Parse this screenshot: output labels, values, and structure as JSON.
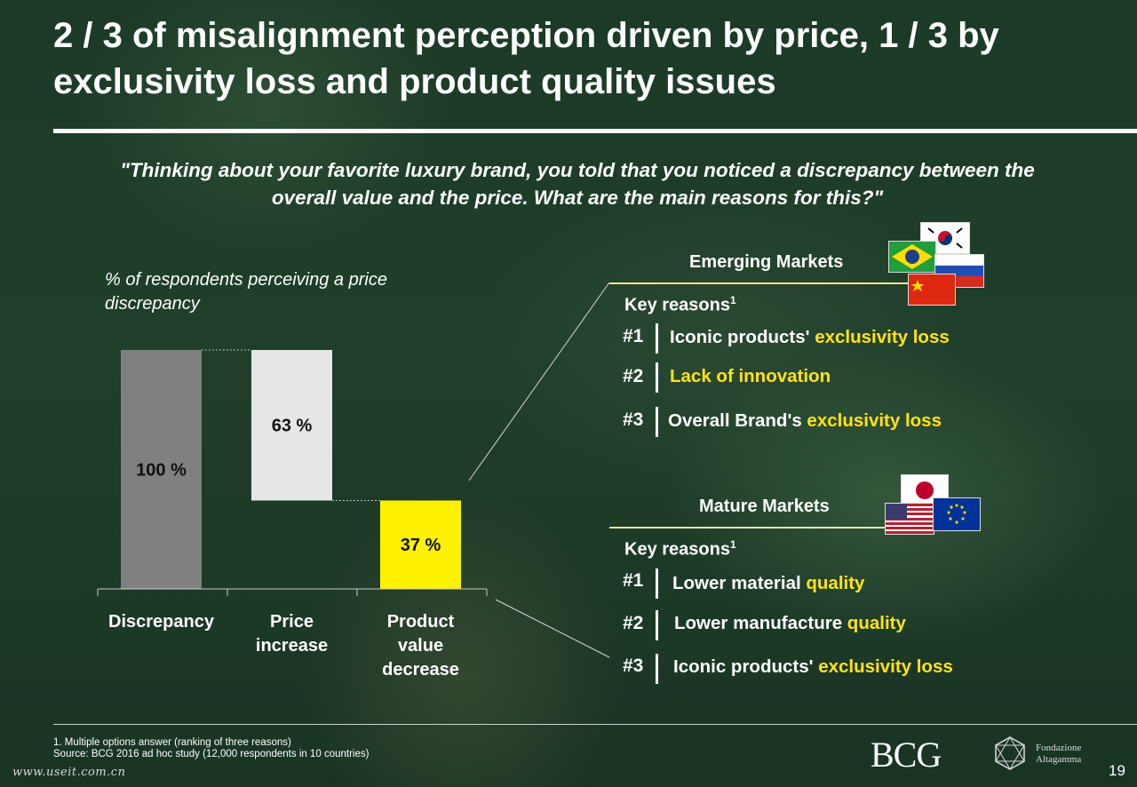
{
  "title": "2 / 3 of misalignment perception driven by price, 1 / 3 by exclusivity loss and product quality issues",
  "question": "\"Thinking about your favorite luxury brand, you told that you noticed a discrepancy between the overall value and the price. What are the main reasons for this?\"",
  "respondents_label": "% of respondents perceiving a price discrepancy",
  "chart_data": {
    "type": "bar",
    "subtype": "waterfall",
    "categories": [
      "Discrepancy",
      "Price increase",
      "Product value decrease"
    ],
    "values": [
      100,
      63,
      37
    ],
    "labels": [
      "100 %",
      "63 %",
      "37 %"
    ],
    "base": [
      0,
      37,
      0
    ],
    "colors": [
      "#808080",
      "#e6e6e6",
      "#fff200"
    ],
    "ylim": [
      0,
      100
    ],
    "grid": false
  },
  "emerging": {
    "title": "Emerging Markets",
    "key_reasons": "Key reasons",
    "sup": "1",
    "flags": [
      "south-korea-flag",
      "brazil-flag",
      "russia-flag",
      "china-flag"
    ],
    "reasons": [
      {
        "rank": "#1",
        "text": "Iconic products' ",
        "highlight": "exclusivity loss"
      },
      {
        "rank": "#2",
        "text": "",
        "highlight": "Lack of innovation"
      },
      {
        "rank": "#3",
        "text": "Overall Brand's ",
        "highlight": "exclusivity loss"
      }
    ]
  },
  "mature": {
    "title": "Mature Markets",
    "key_reasons": "Key reasons",
    "sup": "1",
    "flags": [
      "japan-flag",
      "usa-flag",
      "eu-flag"
    ],
    "reasons": [
      {
        "rank": "#1",
        "text": "Lower material ",
        "highlight": "quality"
      },
      {
        "rank": "#2",
        "text": "Lower manufacture ",
        "highlight": "quality"
      },
      {
        "rank": "#3",
        "text": "Iconic products' ",
        "highlight": "exclusivity loss"
      }
    ]
  },
  "footnote": {
    "line1": "1. Multiple options answer (ranking of three reasons)",
    "line2": "Source: BCG 2016 ad hoc study (12,000 respondents in 10 countries)"
  },
  "watermark": "www.useit.com.cn",
  "page_number": "19",
  "logos": {
    "bcg": "BCG",
    "fondazione_line1": "Fondazione",
    "fondazione_line2": "Altagamma"
  },
  "colors": {
    "highlight": "#ffe319",
    "background": "#1f3d2a"
  }
}
